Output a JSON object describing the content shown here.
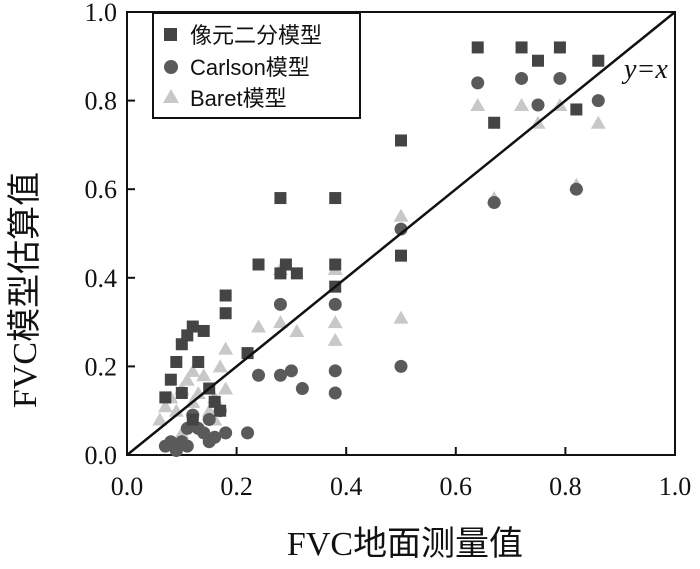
{
  "chart_data": {
    "type": "scatter",
    "xlabel": "FVC地面测量值",
    "ylabel": "FVC模型估算值",
    "xlim": [
      0.0,
      1.0
    ],
    "ylim": [
      0.0,
      1.0
    ],
    "x_ticks": [
      "0.0",
      "0.2",
      "0.4",
      "0.6",
      "0.8",
      "1.0"
    ],
    "y_ticks": [
      "0.0",
      "0.2",
      "0.4",
      "0.6",
      "0.8",
      "1.0"
    ],
    "grid": false,
    "legend_position": "top-left",
    "reference_line": {
      "label": "y=x",
      "x": [
        0.0,
        1.0
      ],
      "y": [
        0.0,
        1.0
      ]
    },
    "series": [
      {
        "name": "像元二分模型",
        "marker": "square",
        "color": "#444444",
        "points": [
          [
            0.07,
            0.13
          ],
          [
            0.08,
            0.17
          ],
          [
            0.09,
            0.21
          ],
          [
            0.1,
            0.14
          ],
          [
            0.1,
            0.25
          ],
          [
            0.11,
            0.27
          ],
          [
            0.12,
            0.29
          ],
          [
            0.13,
            0.21
          ],
          [
            0.12,
            0.08
          ],
          [
            0.14,
            0.28
          ],
          [
            0.15,
            0.15
          ],
          [
            0.16,
            0.12
          ],
          [
            0.17,
            0.1
          ],
          [
            0.18,
            0.32
          ],
          [
            0.18,
            0.36
          ],
          [
            0.22,
            0.23
          ],
          [
            0.24,
            0.43
          ],
          [
            0.28,
            0.58
          ],
          [
            0.28,
            0.41
          ],
          [
            0.29,
            0.43
          ],
          [
            0.31,
            0.41
          ],
          [
            0.38,
            0.58
          ],
          [
            0.38,
            0.43
          ],
          [
            0.38,
            0.38
          ],
          [
            0.5,
            0.71
          ],
          [
            0.5,
            0.45
          ],
          [
            0.64,
            0.92
          ],
          [
            0.67,
            0.75
          ],
          [
            0.72,
            0.92
          ],
          [
            0.75,
            0.89
          ],
          [
            0.79,
            0.92
          ],
          [
            0.82,
            0.78
          ],
          [
            0.86,
            0.89
          ]
        ]
      },
      {
        "name": "Carlson模型",
        "marker": "circle",
        "color": "#5a5a5a",
        "points": [
          [
            0.07,
            0.02
          ],
          [
            0.08,
            0.03
          ],
          [
            0.09,
            0.01
          ],
          [
            0.1,
            0.03
          ],
          [
            0.11,
            0.06
          ],
          [
            0.11,
            0.02
          ],
          [
            0.12,
            0.09
          ],
          [
            0.13,
            0.06
          ],
          [
            0.14,
            0.05
          ],
          [
            0.15,
            0.03
          ],
          [
            0.15,
            0.08
          ],
          [
            0.16,
            0.04
          ],
          [
            0.17,
            0.1
          ],
          [
            0.18,
            0.05
          ],
          [
            0.22,
            0.05
          ],
          [
            0.24,
            0.18
          ],
          [
            0.28,
            0.34
          ],
          [
            0.28,
            0.18
          ],
          [
            0.3,
            0.19
          ],
          [
            0.32,
            0.15
          ],
          [
            0.38,
            0.34
          ],
          [
            0.38,
            0.19
          ],
          [
            0.38,
            0.14
          ],
          [
            0.5,
            0.51
          ],
          [
            0.5,
            0.2
          ],
          [
            0.64,
            0.84
          ],
          [
            0.67,
            0.57
          ],
          [
            0.72,
            0.85
          ],
          [
            0.75,
            0.79
          ],
          [
            0.79,
            0.85
          ],
          [
            0.82,
            0.6
          ],
          [
            0.86,
            0.8
          ]
        ]
      },
      {
        "name": "Baret模型",
        "marker": "triangle",
        "color": "#c8c8c8",
        "points": [
          [
            0.06,
            0.08
          ],
          [
            0.07,
            0.11
          ],
          [
            0.08,
            0.13
          ],
          [
            0.09,
            0.1
          ],
          [
            0.1,
            0.15
          ],
          [
            0.1,
            0.05
          ],
          [
            0.11,
            0.17
          ],
          [
            0.12,
            0.19
          ],
          [
            0.12,
            0.12
          ],
          [
            0.13,
            0.14
          ],
          [
            0.14,
            0.18
          ],
          [
            0.15,
            0.1
          ],
          [
            0.16,
            0.13
          ],
          [
            0.16,
            0.08
          ],
          [
            0.17,
            0.2
          ],
          [
            0.18,
            0.24
          ],
          [
            0.18,
            0.15
          ],
          [
            0.24,
            0.29
          ],
          [
            0.28,
            0.42
          ],
          [
            0.28,
            0.3
          ],
          [
            0.31,
            0.28
          ],
          [
            0.38,
            0.42
          ],
          [
            0.38,
            0.3
          ],
          [
            0.38,
            0.26
          ],
          [
            0.5,
            0.54
          ],
          [
            0.5,
            0.31
          ],
          [
            0.64,
            0.79
          ],
          [
            0.67,
            0.58
          ],
          [
            0.72,
            0.79
          ],
          [
            0.75,
            0.75
          ],
          [
            0.79,
            0.79
          ],
          [
            0.82,
            0.61
          ],
          [
            0.86,
            0.75
          ]
        ]
      }
    ]
  }
}
